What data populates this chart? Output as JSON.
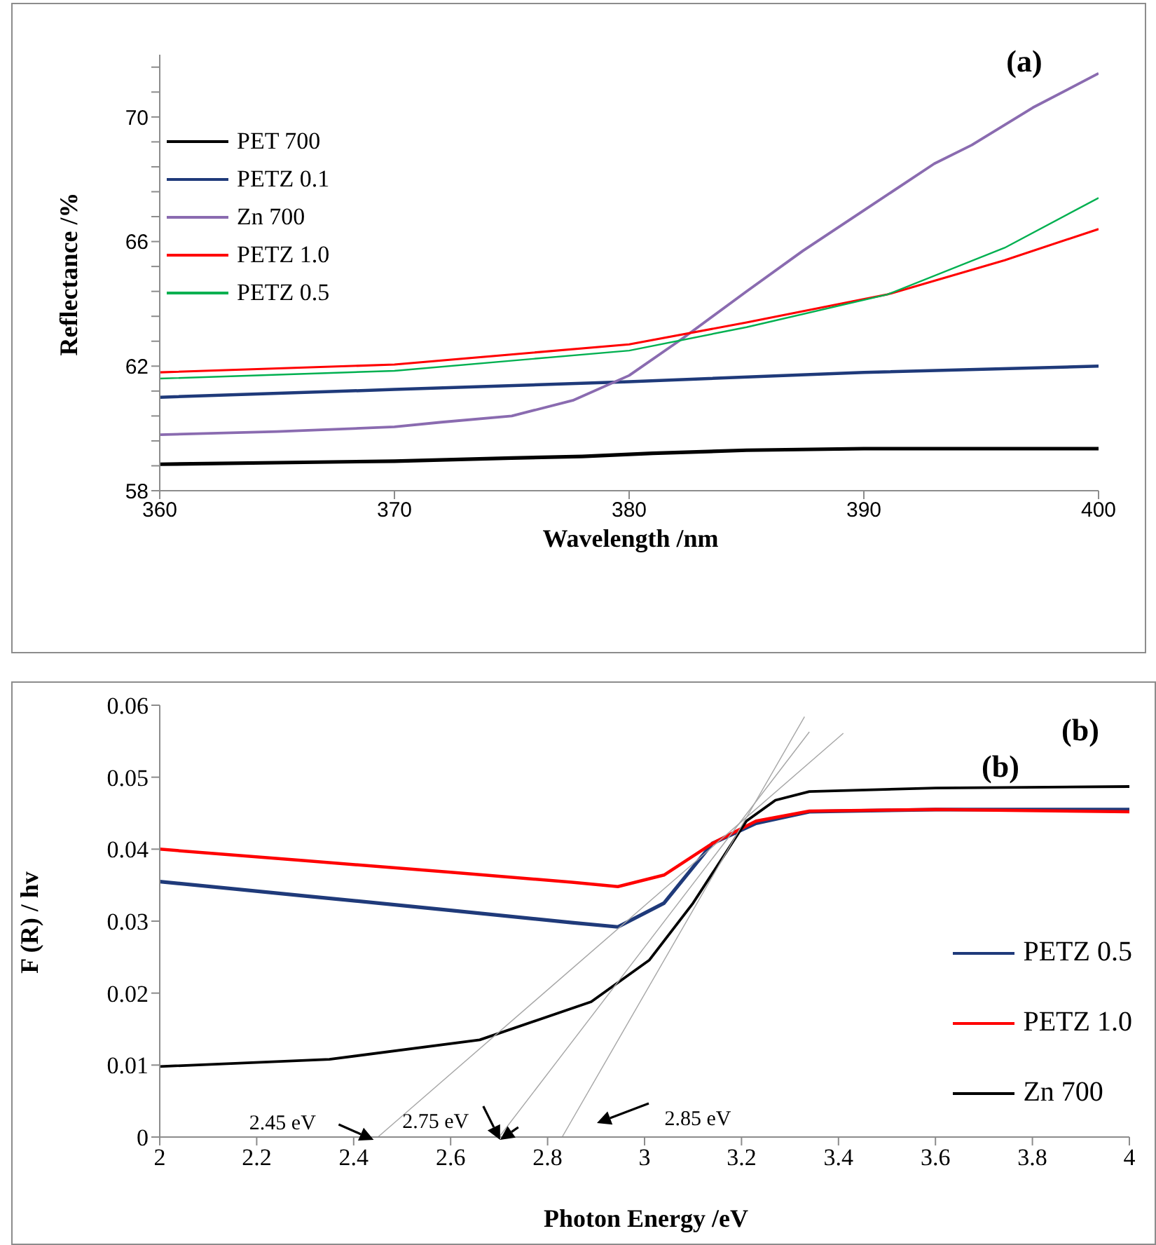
{
  "chart_data": [
    {
      "type": "line",
      "xlabel": "Wavelength /nm",
      "ylabel": "Reflectance /%",
      "xlim": [
        360,
        400
      ],
      "xticks": [
        360,
        370,
        380,
        390,
        400
      ],
      "ylim": [
        58,
        72
      ],
      "yticks": [
        58,
        {
          "value": 58.8,
          "label": null
        },
        {
          "value": 59.6,
          "label": null
        },
        {
          "value": 60.4,
          "label": null
        },
        {
          "value": 61.2,
          "label": null
        },
        62,
        {
          "value": 62.8,
          "label": null
        },
        {
          "value": 63.6,
          "label": null
        },
        {
          "value": 64.4,
          "label": null
        },
        {
          "value": 65.2,
          "label": null
        },
        66,
        {
          "value": 66.8,
          "label": null
        },
        {
          "value": 67.6,
          "label": null
        },
        {
          "value": 68.4,
          "label": null
        },
        {
          "value": 69.2,
          "label": null
        },
        70,
        {
          "value": 70.8,
          "label": null
        },
        {
          "value": 71.6,
          "label": null
        }
      ],
      "legend": "top left",
      "annotations": [
        "(a)"
      ],
      "series": [
        {
          "name": "PET 700",
          "color": "#000000",
          "x": [
            360,
            365,
            370,
            375,
            378,
            381,
            385,
            390,
            395,
            400
          ],
          "values": [
            58.85,
            58.9,
            58.95,
            59.05,
            59.1,
            59.2,
            59.3,
            59.35,
            59.35,
            59.35
          ]
        },
        {
          "name": "PETZ 0.1",
          "color": "#1f3a7a",
          "x": [
            360,
            370,
            380,
            390,
            400
          ],
          "values": [
            61.0,
            61.25,
            61.5,
            61.8,
            62.0
          ]
        },
        {
          "name": "Zn 700",
          "color": "#8a6bb0",
          "x": [
            360,
            365,
            370,
            372,
            375,
            377.6,
            380,
            382.3,
            385,
            387.4,
            390,
            393,
            394.6,
            397.2,
            400
          ],
          "values": [
            59.8,
            59.9,
            60.05,
            60.2,
            60.4,
            60.9,
            61.7,
            62.9,
            64.4,
            65.7,
            67.0,
            68.5,
            69.1,
            70.3,
            71.4
          ]
        },
        {
          "name": "PETZ 1.0",
          "color": "#ff0000",
          "x": [
            360,
            370,
            380,
            385,
            391,
            396,
            400
          ],
          "values": [
            61.8,
            62.05,
            62.7,
            63.4,
            64.3,
            65.4,
            66.4
          ]
        },
        {
          "name": "PETZ 0.5",
          "color": "#00b050",
          "x": [
            360,
            370,
            380,
            385,
            391,
            396,
            400
          ],
          "values": [
            61.6,
            61.85,
            62.5,
            63.25,
            64.3,
            65.8,
            67.4
          ]
        }
      ]
    },
    {
      "type": "line",
      "xlabel": "Photon Energy /eV",
      "ylabel": "F (R) / hv",
      "xlim": [
        2,
        4
      ],
      "xticks": [
        2,
        2.2,
        2.4,
        2.6,
        2.8,
        3,
        3.2,
        3.4,
        3.6,
        3.8,
        4
      ],
      "ylim": [
        0,
        0.06
      ],
      "yticks": [
        0,
        0.01,
        0.02,
        0.03,
        0.04,
        0.05,
        0.06
      ],
      "legend": "right",
      "annotations": [
        {
          "text": "2.45 eV",
          "x": 2.44,
          "y": 0
        },
        {
          "text": "2.75 eV",
          "x": 2.7,
          "y": 0
        },
        "2.85 eV",
        "(b)",
        "(b)"
      ],
      "series": [
        {
          "name": "PETZ 0.5",
          "color": "#1f3a7a",
          "x": [
            2,
            2.3,
            2.6,
            2.85,
            2.945,
            3.04,
            3.14,
            3.23,
            3.34,
            3.6,
            4
          ],
          "values": [
            0.0355,
            0.0335,
            0.0315,
            0.0298,
            0.0292,
            0.0325,
            0.0408,
            0.0436,
            0.0452,
            0.0455,
            0.0455
          ]
        },
        {
          "name": "PETZ 1.0",
          "color": "#ff0000",
          "x": [
            2,
            2.3,
            2.6,
            2.85,
            2.945,
            3.04,
            3.14,
            3.23,
            3.34,
            3.6,
            4
          ],
          "values": [
            0.04,
            0.0384,
            0.0368,
            0.0354,
            0.0348,
            0.0364,
            0.0408,
            0.0439,
            0.0453,
            0.0455,
            0.0452
          ]
        },
        {
          "name": "Zn 700",
          "color": "#000000",
          "x": [
            2,
            2.35,
            2.66,
            2.89,
            3.01,
            3.1,
            3.21,
            3.27,
            3.34,
            3.6,
            4
          ],
          "values": [
            0.0098,
            0.0108,
            0.0135,
            0.0188,
            0.0246,
            0.0325,
            0.0439,
            0.0468,
            0.048,
            0.0485,
            0.0487
          ]
        },
        {
          "type": "line",
          "color": "#a6a6a6",
          "x": [
            2.45,
            3.41
          ],
          "values": [
            0,
            0.0561
          ]
        },
        {
          "type": "line",
          "color": "#a6a6a6",
          "x": [
            2.7,
            3.34
          ],
          "values": [
            0,
            0.0563
          ]
        },
        {
          "type": "line",
          "color": "#a6a6a6",
          "x": [
            2.83,
            3.33
          ],
          "values": [
            0,
            0.0584
          ]
        }
      ]
    }
  ]
}
